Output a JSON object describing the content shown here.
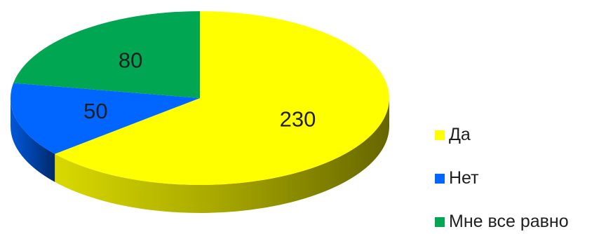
{
  "chart_data": {
    "type": "pie",
    "style": "3d",
    "title": "",
    "categories": [
      "Да",
      "Нет",
      "Мне все равно"
    ],
    "values": [
      230,
      50,
      80
    ],
    "colors": [
      "#ffff00",
      "#0066ff",
      "#00a651"
    ],
    "data_labels": [
      "230",
      "50",
      "80"
    ],
    "legend": {
      "position": "right",
      "entries": [
        "Да",
        "Нет",
        "Мне все равно"
      ]
    }
  }
}
